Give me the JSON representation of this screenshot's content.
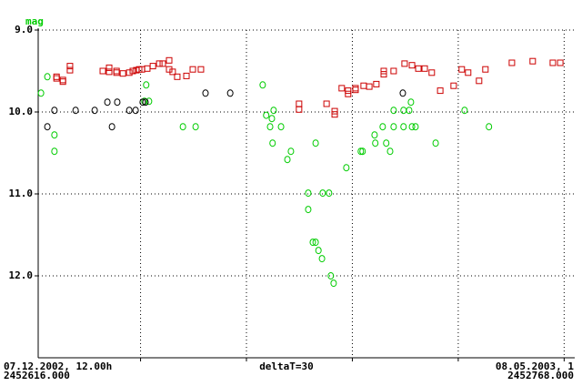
{
  "chart_data": {
    "type": "scatter",
    "y_label": "mag",
    "x_label_left": [
      "07.12.2002, 12.00h",
      "2452616.000"
    ],
    "x_label_center": "deltaT=30",
    "x_label_right": [
      "08.05.2003, 1",
      "2452768.000"
    ],
    "xlim": [
      2452616,
      2452768
    ],
    "ylim": [
      9,
      13
    ],
    "y_inverted": true,
    "yticks": [
      {
        "value": 9,
        "label": "9.0"
      },
      {
        "value": 10,
        "label": "10.0"
      },
      {
        "value": 11,
        "label": "11.0"
      },
      {
        "value": 12,
        "label": "12.0"
      }
    ],
    "xgrid": [
      2452645,
      2452675,
      2452705,
      2452735,
      2452765
    ],
    "grid": true,
    "series": [
      {
        "color": "#cc0000",
        "marker": "square",
        "x": [
          2452621.2,
          2452621.2,
          2452623.0,
          2452623.0,
          2452625.0,
          2452625.0,
          2452634.3,
          2452636.1,
          2452636.1,
          2452638.2,
          2452638.2,
          2452640.0,
          2452641.8,
          2452642.8,
          2452643.8,
          2452644.6,
          2452645.4,
          2452646.9,
          2452648.5,
          2452650.3,
          2452651.3,
          2452653.1,
          2452653.1,
          2452654.1,
          2452655.4,
          2452658.0,
          2452659.8,
          2452662.1,
          2452689.9,
          2452689.9,
          2452697.7,
          2452700.0,
          2452700.0,
          2452702.0,
          2452703.8,
          2452703.8,
          2452705.9,
          2452705.9,
          2452708.2,
          2452709.8,
          2452711.8,
          2452713.9,
          2452713.9,
          2452716.7,
          2452719.8,
          2452721.9,
          2452723.7,
          2452725.5,
          2452727.5,
          2452729.9,
          2452733.7,
          2452736.0,
          2452737.8,
          2452740.9,
          2452742.7,
          2452750.2,
          2452756.1,
          2452761.8,
          2452763.9
        ],
        "values": [
          9.57,
          9.59,
          9.61,
          9.63,
          9.44,
          9.49,
          9.5,
          9.46,
          9.51,
          9.5,
          9.52,
          9.53,
          9.52,
          9.5,
          9.49,
          9.48,
          9.48,
          9.47,
          9.44,
          9.41,
          9.41,
          9.37,
          9.48,
          9.51,
          9.57,
          9.56,
          9.48,
          9.48,
          9.9,
          9.97,
          9.9,
          9.99,
          10.03,
          9.71,
          9.74,
          9.78,
          9.71,
          9.73,
          9.68,
          9.69,
          9.66,
          9.54,
          9.5,
          9.5,
          9.41,
          9.43,
          9.47,
          9.47,
          9.52,
          9.74,
          9.68,
          9.48,
          9.52,
          9.62,
          9.48,
          9.4,
          9.38,
          9.4,
          9.4
        ]
      },
      {
        "color": "#00cc00",
        "marker": "circle",
        "x": [
          2452616.8,
          2452618.6,
          2452620.6,
          2452620.6,
          2452646.1,
          2452646.6,
          2452647.4,
          2452657.0,
          2452660.6,
          2452679.6,
          2452680.6,
          2452681.7,
          2452682.2,
          2452682.7,
          2452682.4,
          2452684.8,
          2452686.6,
          2452687.6,
          2452692.5,
          2452692.5,
          2452693.8,
          2452694.6,
          2452695.4,
          2452696.4,
          2452696.6,
          2452698.4,
          2452698.9,
          2452699.7,
          2452694.6,
          2452703.3,
          2452707.4,
          2452707.9,
          2452711.3,
          2452711.5,
          2452713.6,
          2452714.6,
          2452715.7,
          2452716.7,
          2452716.7,
          2452719.5,
          2452719.5,
          2452721.1,
          2452721.6,
          2452721.9,
          2452722.9,
          2452728.6,
          2452736.8,
          2452743.7
        ],
        "values": [
          9.77,
          9.57,
          10.28,
          10.48,
          9.87,
          9.67,
          9.87,
          10.18,
          10.18,
          9.67,
          10.04,
          10.18,
          10.08,
          9.98,
          10.38,
          10.18,
          10.58,
          10.48,
          10.99,
          11.19,
          11.59,
          11.59,
          11.69,
          11.79,
          10.99,
          10.99,
          12.0,
          12.09,
          10.38,
          10.68,
          10.48,
          10.48,
          10.28,
          10.38,
          10.18,
          10.38,
          10.48,
          9.98,
          10.18,
          9.98,
          10.18,
          9.98,
          9.88,
          10.18,
          10.18,
          10.38,
          9.98,
          10.18
        ]
      },
      {
        "color": "#000000",
        "marker": "circle",
        "x": [
          2452618.6,
          2452620.6,
          2452626.6,
          2452632.0,
          2452635.6,
          2452636.9,
          2452638.4,
          2452641.8,
          2452643.6,
          2452645.6,
          2452646.4,
          2452663.4,
          2452670.4,
          2452719.3
        ],
        "values": [
          10.18,
          9.98,
          9.98,
          9.98,
          9.88,
          10.18,
          9.88,
          9.98,
          9.98,
          9.88,
          9.88,
          9.77,
          9.77,
          9.77
        ]
      }
    ]
  }
}
